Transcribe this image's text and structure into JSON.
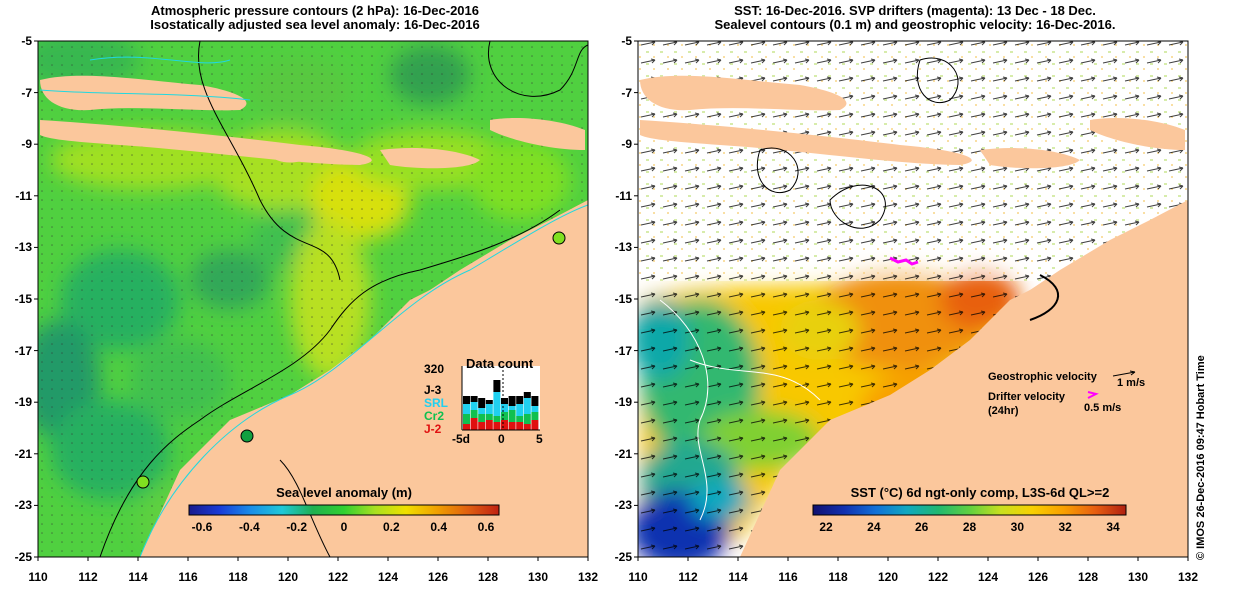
{
  "left_panel": {
    "title_line1": "Atmospheric pressure contours (2 hPa): 16-Dec-2016",
    "title_line2": "Isostatically adjusted sea level anomaly: 16-Dec-2016",
    "y_ticks": [
      "-5",
      "-7",
      "-9",
      "-11",
      "-13",
      "-15",
      "-17",
      "-19",
      "-21",
      "-23",
      "-25"
    ],
    "x_ticks": [
      "110",
      "112",
      "114",
      "116",
      "118",
      "120",
      "122",
      "124",
      "126",
      "128",
      "130",
      "132"
    ],
    "colorbar": {
      "title": "Sea level anomaly (m)",
      "labels": [
        "-0.6",
        "-0.4",
        "-0.2",
        "0",
        "0.2",
        "0.4",
        "0.6"
      ],
      "range": [
        -0.6,
        0.6
      ]
    },
    "data_count": {
      "title": "Data count",
      "max_label": "320",
      "x_labels": [
        "-5d",
        "0",
        "5"
      ],
      "missions": [
        {
          "name": "J-3",
          "color": "#000000"
        },
        {
          "name": "SRL",
          "color": "#20d0f0"
        },
        {
          "name": "Cr2",
          "color": "#10c050"
        },
        {
          "name": "J-2",
          "color": "#e01010"
        }
      ]
    }
  },
  "right_panel": {
    "title_line1": "SST: 16-Dec-2016. SVP drifters (magenta): 13 Dec - 18 Dec.",
    "title_line2": "Sealevel contours (0.1 m) and geostrophic velocity: 16-Dec-2016.",
    "y_ticks": [
      "-5",
      "-7",
      "-9",
      "-11",
      "-13",
      "-15",
      "-17",
      "-19",
      "-21",
      "-23",
      "-25"
    ],
    "x_ticks": [
      "110",
      "112",
      "114",
      "116",
      "118",
      "120",
      "122",
      "124",
      "126",
      "128",
      "130",
      "132"
    ],
    "legend": {
      "geostrophic": "Geostrophic velocity",
      "geostrophic_scale": "1 m/s",
      "drifter_line1": "Drifter velocity",
      "drifter_line2": "(24hr)",
      "drifter_scale": "0.5 m/s"
    },
    "colorbar": {
      "title": "SST (°C) 6d ngt-only comp, L3S-6d QL>=2",
      "labels": [
        "22",
        "24",
        "26",
        "28",
        "30",
        "32",
        "34"
      ],
      "range": [
        22,
        34
      ]
    }
  },
  "footer_side_text": "© IMOS 26-Dec-2016 09:47 Hobart Time",
  "colors": {
    "land": "#fbc79c",
    "contour_cyan": "#20d8e0",
    "drifter": "#ff00ff",
    "sla_scale": [
      "#1a1a8c",
      "#1a3cd8",
      "#1a8ee8",
      "#20c8d8",
      "#20b050",
      "#30d030",
      "#a8e020",
      "#f0e000",
      "#f0a000",
      "#e06010",
      "#c02010"
    ],
    "sst_scale": [
      "#101070",
      "#1030b0",
      "#1070d8",
      "#10a8c0",
      "#20b870",
      "#60d040",
      "#c8e020",
      "#f8d000",
      "#f8a000",
      "#e86010",
      "#b02010"
    ]
  }
}
